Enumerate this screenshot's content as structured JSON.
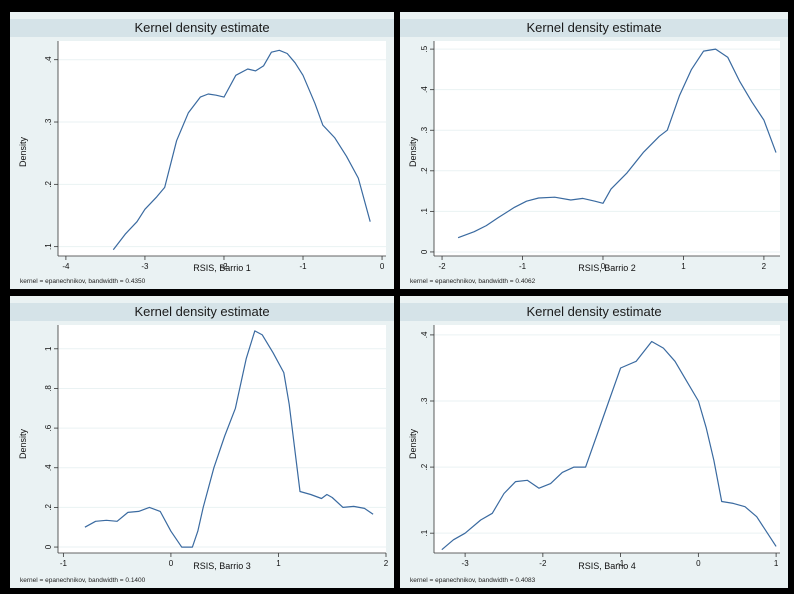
{
  "chart_data": [
    {
      "type": "line",
      "title": "Kernel density estimate",
      "xlabel": "RSIS, Barrio 1",
      "ylabel": "Density",
      "note": "kernel = epanechnikov, bandwidth = 0.4350",
      "xlim": [
        -4.1,
        0.05
      ],
      "ylim": [
        0.085,
        0.43
      ],
      "xticks": [
        -4,
        -3,
        -2,
        -1,
        0
      ],
      "xtick_labels": [
        "-4",
        "-3",
        "-2",
        "-1",
        "0"
      ],
      "yticks": [
        0.1,
        0.2,
        0.3,
        0.4
      ],
      "ytick_labels": [
        ".1",
        ".2",
        ".3",
        ".4"
      ],
      "series": [
        {
          "x": [
            -3.4,
            -3.25,
            -3.1,
            -3.0,
            -2.85,
            -2.75,
            -2.6,
            -2.45,
            -2.3,
            -2.2,
            -2.1,
            -2.0,
            -1.85,
            -1.7,
            -1.6,
            -1.5,
            -1.4,
            -1.3,
            -1.2,
            -1.1,
            -1.0,
            -0.85,
            -0.75,
            -0.6,
            -0.45,
            -0.3,
            -0.15
          ],
          "y": [
            0.095,
            0.12,
            0.14,
            0.16,
            0.18,
            0.195,
            0.27,
            0.315,
            0.34,
            0.345,
            0.343,
            0.34,
            0.375,
            0.385,
            0.382,
            0.39,
            0.412,
            0.415,
            0.41,
            0.395,
            0.375,
            0.33,
            0.295,
            0.275,
            0.245,
            0.21,
            0.14
          ]
        }
      ],
      "color": "#3a6aa0"
    },
    {
      "type": "line",
      "title": "Kernel density estimate",
      "xlabel": "RSIS, Barrio 2",
      "ylabel": "Density",
      "note": "kernel = epanechnikov, bandwidth = 0.4062",
      "xlim": [
        -2.1,
        2.2
      ],
      "ylim": [
        -0.01,
        0.52
      ],
      "xticks": [
        -2,
        -1,
        0,
        1,
        2
      ],
      "xtick_labels": [
        "-2",
        "-1",
        "0",
        "1",
        "2"
      ],
      "yticks": [
        0,
        0.1,
        0.2,
        0.3,
        0.4,
        0.5
      ],
      "ytick_labels": [
        "0",
        ".1",
        ".2",
        ".3",
        ".4",
        ".5"
      ],
      "series": [
        {
          "x": [
            -1.8,
            -1.6,
            -1.45,
            -1.3,
            -1.1,
            -0.95,
            -0.8,
            -0.6,
            -0.4,
            -0.25,
            -0.1,
            0.0,
            0.1,
            0.3,
            0.5,
            0.7,
            0.8,
            0.95,
            1.1,
            1.25,
            1.4,
            1.55,
            1.7,
            1.85,
            2.0,
            2.15
          ],
          "y": [
            0.035,
            0.05,
            0.065,
            0.085,
            0.11,
            0.125,
            0.133,
            0.135,
            0.128,
            0.132,
            0.125,
            0.12,
            0.155,
            0.195,
            0.245,
            0.285,
            0.3,
            0.385,
            0.45,
            0.495,
            0.5,
            0.48,
            0.42,
            0.37,
            0.325,
            0.245
          ]
        }
      ],
      "color": "#3a6aa0"
    },
    {
      "type": "line",
      "title": "Kernel density estimate",
      "xlabel": "RSIS, Barrio 3",
      "ylabel": "Density",
      "note": "kernel = epanechnikov, bandwidth = 0.1400",
      "xlim": [
        -1.05,
        2.0
      ],
      "ylim": [
        -0.03,
        1.12
      ],
      "xticks": [
        -1,
        0,
        1,
        2
      ],
      "xtick_labels": [
        "-1",
        "0",
        "1",
        "2"
      ],
      "yticks": [
        0,
        0.2,
        0.4,
        0.6,
        0.8,
        1.0
      ],
      "ytick_labels": [
        "0",
        ".2",
        ".4",
        ".6",
        ".8",
        "1"
      ],
      "series": [
        {
          "x": [
            -0.8,
            -0.7,
            -0.6,
            -0.5,
            -0.4,
            -0.3,
            -0.2,
            -0.1,
            0.0,
            0.1,
            0.2,
            0.25,
            0.3,
            0.4,
            0.5,
            0.6,
            0.7,
            0.78,
            0.85,
            0.95,
            1.05,
            1.1,
            1.2,
            1.3,
            1.4,
            1.45,
            1.5,
            1.6,
            1.7,
            1.8,
            1.88
          ],
          "y": [
            0.1,
            0.13,
            0.135,
            0.13,
            0.175,
            0.18,
            0.2,
            0.18,
            0.08,
            0.0,
            0.0,
            0.08,
            0.2,
            0.4,
            0.56,
            0.7,
            0.95,
            1.09,
            1.07,
            0.98,
            0.88,
            0.72,
            0.28,
            0.265,
            0.245,
            0.265,
            0.25,
            0.2,
            0.205,
            0.195,
            0.165
          ]
        }
      ],
      "color": "#3a6aa0"
    },
    {
      "type": "line",
      "title": "Kernel density estimate",
      "xlabel": "RSIS, Barrio 4",
      "ylabel": "Density",
      "note": "kernel = epanechnikov, bandwidth = 0.4083",
      "xlim": [
        -3.4,
        1.05
      ],
      "ylim": [
        0.07,
        0.415
      ],
      "xticks": [
        -3,
        -2,
        -1,
        0,
        1
      ],
      "xtick_labels": [
        "-3",
        "-2",
        "-1",
        "0",
        "1"
      ],
      "yticks": [
        0.1,
        0.2,
        0.3,
        0.4
      ],
      "ytick_labels": [
        ".1",
        ".2",
        ".3",
        ".4"
      ],
      "series": [
        {
          "x": [
            -3.3,
            -3.15,
            -3.0,
            -2.8,
            -2.65,
            -2.5,
            -2.35,
            -2.2,
            -2.05,
            -1.9,
            -1.75,
            -1.6,
            -1.45,
            -1.3,
            -1.15,
            -1.0,
            -0.8,
            -0.6,
            -0.45,
            -0.3,
            -0.15,
            0.0,
            0.1,
            0.2,
            0.3,
            0.45,
            0.6,
            0.75,
            1.0
          ],
          "y": [
            0.075,
            0.09,
            0.1,
            0.12,
            0.13,
            0.16,
            0.178,
            0.18,
            0.168,
            0.175,
            0.192,
            0.2,
            0.2,
            0.25,
            0.3,
            0.35,
            0.36,
            0.39,
            0.38,
            0.36,
            0.33,
            0.3,
            0.26,
            0.21,
            0.148,
            0.145,
            0.14,
            0.125,
            0.08
          ]
        }
      ],
      "color": "#3a6aa0"
    }
  ]
}
